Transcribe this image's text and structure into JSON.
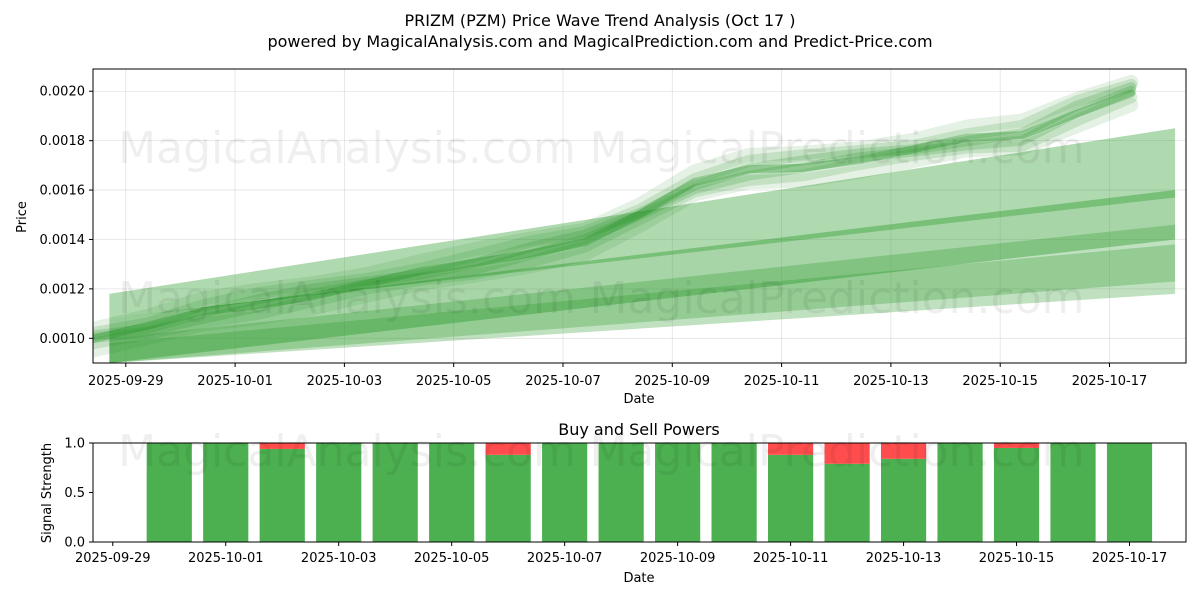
{
  "chart_data": [
    {
      "type": "area",
      "title": "PRIZM (PZM) Price Wave Trend Analysis (Oct 17 )",
      "subtitle": "powered by MagicalAnalysis.com and MagicalPrediction.com and Predict-Price.com",
      "xlabel": "Date",
      "ylabel": "Price",
      "xlim": [
        "2025-09-28.4",
        "2025-10-18.4"
      ],
      "ylim": [
        0.0009,
        0.00209
      ],
      "grid": true,
      "x_ticks": [
        "2025-09-29",
        "2025-10-01",
        "2025-10-03",
        "2025-10-05",
        "2025-10-07",
        "2025-10-09",
        "2025-10-11",
        "2025-10-13",
        "2025-10-15",
        "2025-10-17"
      ],
      "y_ticks": [
        "0.0010",
        "0.0012",
        "0.0014",
        "0.0016",
        "0.0018",
        "0.0020"
      ],
      "watermarks": [
        "MagicalAnalysis.com",
        "MagicalPrediction.com",
        "MagicalAnalysis.com",
        "MagicalPrediction.com"
      ],
      "price_wave": {
        "x_days": [
          0,
          1,
          2,
          3,
          4,
          5,
          6,
          7,
          8,
          9,
          10,
          11,
          12,
          13,
          14,
          15,
          16,
          17,
          18,
          19
        ],
        "center": [
          0.001,
          0.00104,
          0.0011,
          0.00114,
          0.00118,
          0.00122,
          0.00126,
          0.0013,
          0.00135,
          0.0014,
          0.0015,
          0.00162,
          0.00168,
          0.0017,
          0.00173,
          0.00176,
          0.0018,
          0.00182,
          0.00192,
          0.002
        ]
      },
      "trend_bands": [
        {
          "x_start": -0.3,
          "x_end": 19.2,
          "top_start": 0.00118,
          "top_end": 0.00185,
          "bottom_start": 0.00108,
          "bottom_end": 0.00157
        },
        {
          "x_start": -0.3,
          "x_end": 19.2,
          "top_start": 0.00108,
          "top_end": 0.0016,
          "bottom_start": 0.0009,
          "bottom_end": 0.0014
        },
        {
          "x_start": -0.3,
          "x_end": 19.2,
          "top_start": 0.001,
          "top_end": 0.00146,
          "bottom_start": 0.0009,
          "bottom_end": 0.00123
        },
        {
          "x_start": -0.3,
          "x_end": 19.2,
          "top_start": 0.00098,
          "top_end": 0.00138,
          "bottom_start": 0.0009,
          "bottom_end": 0.00118
        }
      ]
    },
    {
      "type": "bar",
      "title": "Buy and Sell Powers",
      "xlabel": "Date",
      "ylabel": "Signal Strength",
      "ylim": [
        0,
        1.0
      ],
      "x_ticks": [
        "2025-09-29",
        "2025-10-01",
        "2025-10-03",
        "2025-10-05",
        "2025-10-07",
        "2025-10-09",
        "2025-10-11",
        "2025-10-13",
        "2025-10-15",
        "2025-10-17"
      ],
      "y_ticks": [
        "0.0",
        "0.5",
        "1.0"
      ],
      "categories": [
        "2025-09-30",
        "2025-10-01",
        "2025-10-02",
        "2025-10-03",
        "2025-10-04",
        "2025-10-05",
        "2025-10-06",
        "2025-10-07",
        "2025-10-08",
        "2025-10-09",
        "2025-10-10",
        "2025-10-11",
        "2025-10-12",
        "2025-10-13",
        "2025-10-14",
        "2025-10-15",
        "2025-10-16",
        "2025-10-17"
      ],
      "series": [
        {
          "name": "Buy",
          "color": "#4caf50",
          "values": [
            1.0,
            1.0,
            0.94,
            1.0,
            1.0,
            1.0,
            0.88,
            1.0,
            1.0,
            1.0,
            1.0,
            0.88,
            0.79,
            0.84,
            1.0,
            0.95,
            1.0,
            1.0
          ]
        },
        {
          "name": "Sell",
          "color": "#ff4d4d",
          "values": [
            0.0,
            0.0,
            0.06,
            0.0,
            0.0,
            0.0,
            0.12,
            0.0,
            0.0,
            0.0,
            0.0,
            0.12,
            0.21,
            0.16,
            0.0,
            0.05,
            0.0,
            0.0
          ]
        }
      ],
      "watermarks": [
        "MagicalAnalysis.com",
        "MagicalPrediction.com"
      ]
    }
  ]
}
